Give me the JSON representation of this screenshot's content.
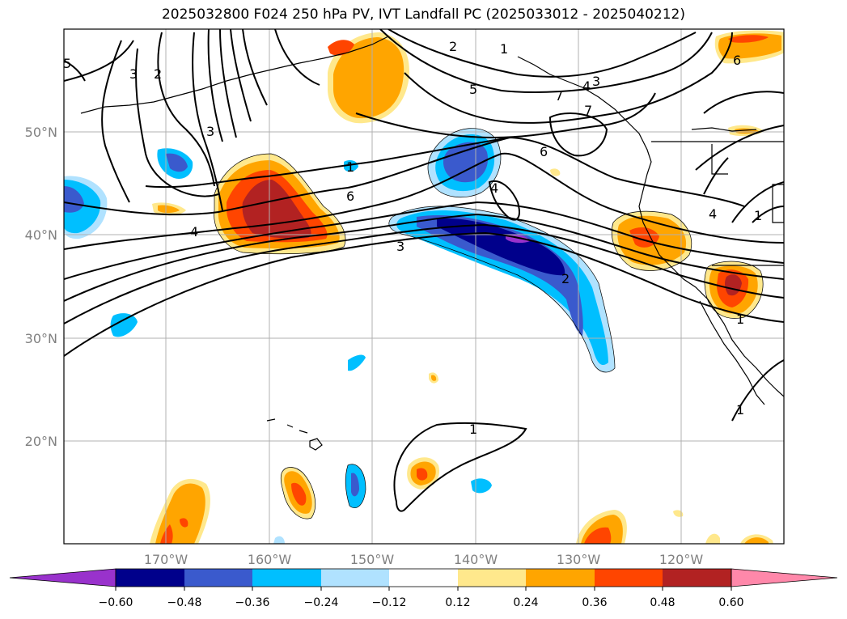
{
  "title": "2025032800 F024 250 hPa PV, IVT Landfall PC (2025033012 - 2025040212)",
  "map": {
    "lon_labels": [
      "170°W",
      "160°W",
      "150°W",
      "140°W",
      "130°W",
      "120°W"
    ],
    "lat_labels": [
      "50°N",
      "40°N",
      "30°N",
      "20°N"
    ],
    "contour_labels": [
      "5",
      "3",
      "2",
      "2",
      "1",
      "3",
      "4",
      "7",
      "7",
      "1",
      "6",
      "6",
      "5",
      "3",
      "4",
      "4",
      "2",
      "1",
      "1",
      "6",
      "4",
      "1",
      "1",
      "3"
    ]
  },
  "colorbar": {
    "tick_labels": [
      "−0.60",
      "−0.48",
      "−0.36",
      "−0.24",
      "−0.12",
      "0.12",
      "0.24",
      "0.36",
      "0.48",
      "0.60"
    ],
    "colors": [
      "#9932cc",
      "#00008b",
      "#3a5acd",
      "#00bfff",
      "#b0e2ff",
      "#ffffff",
      "#ffe88c",
      "#ffa500",
      "#ff4500",
      "#b22222",
      "#ff88aa"
    ]
  }
}
